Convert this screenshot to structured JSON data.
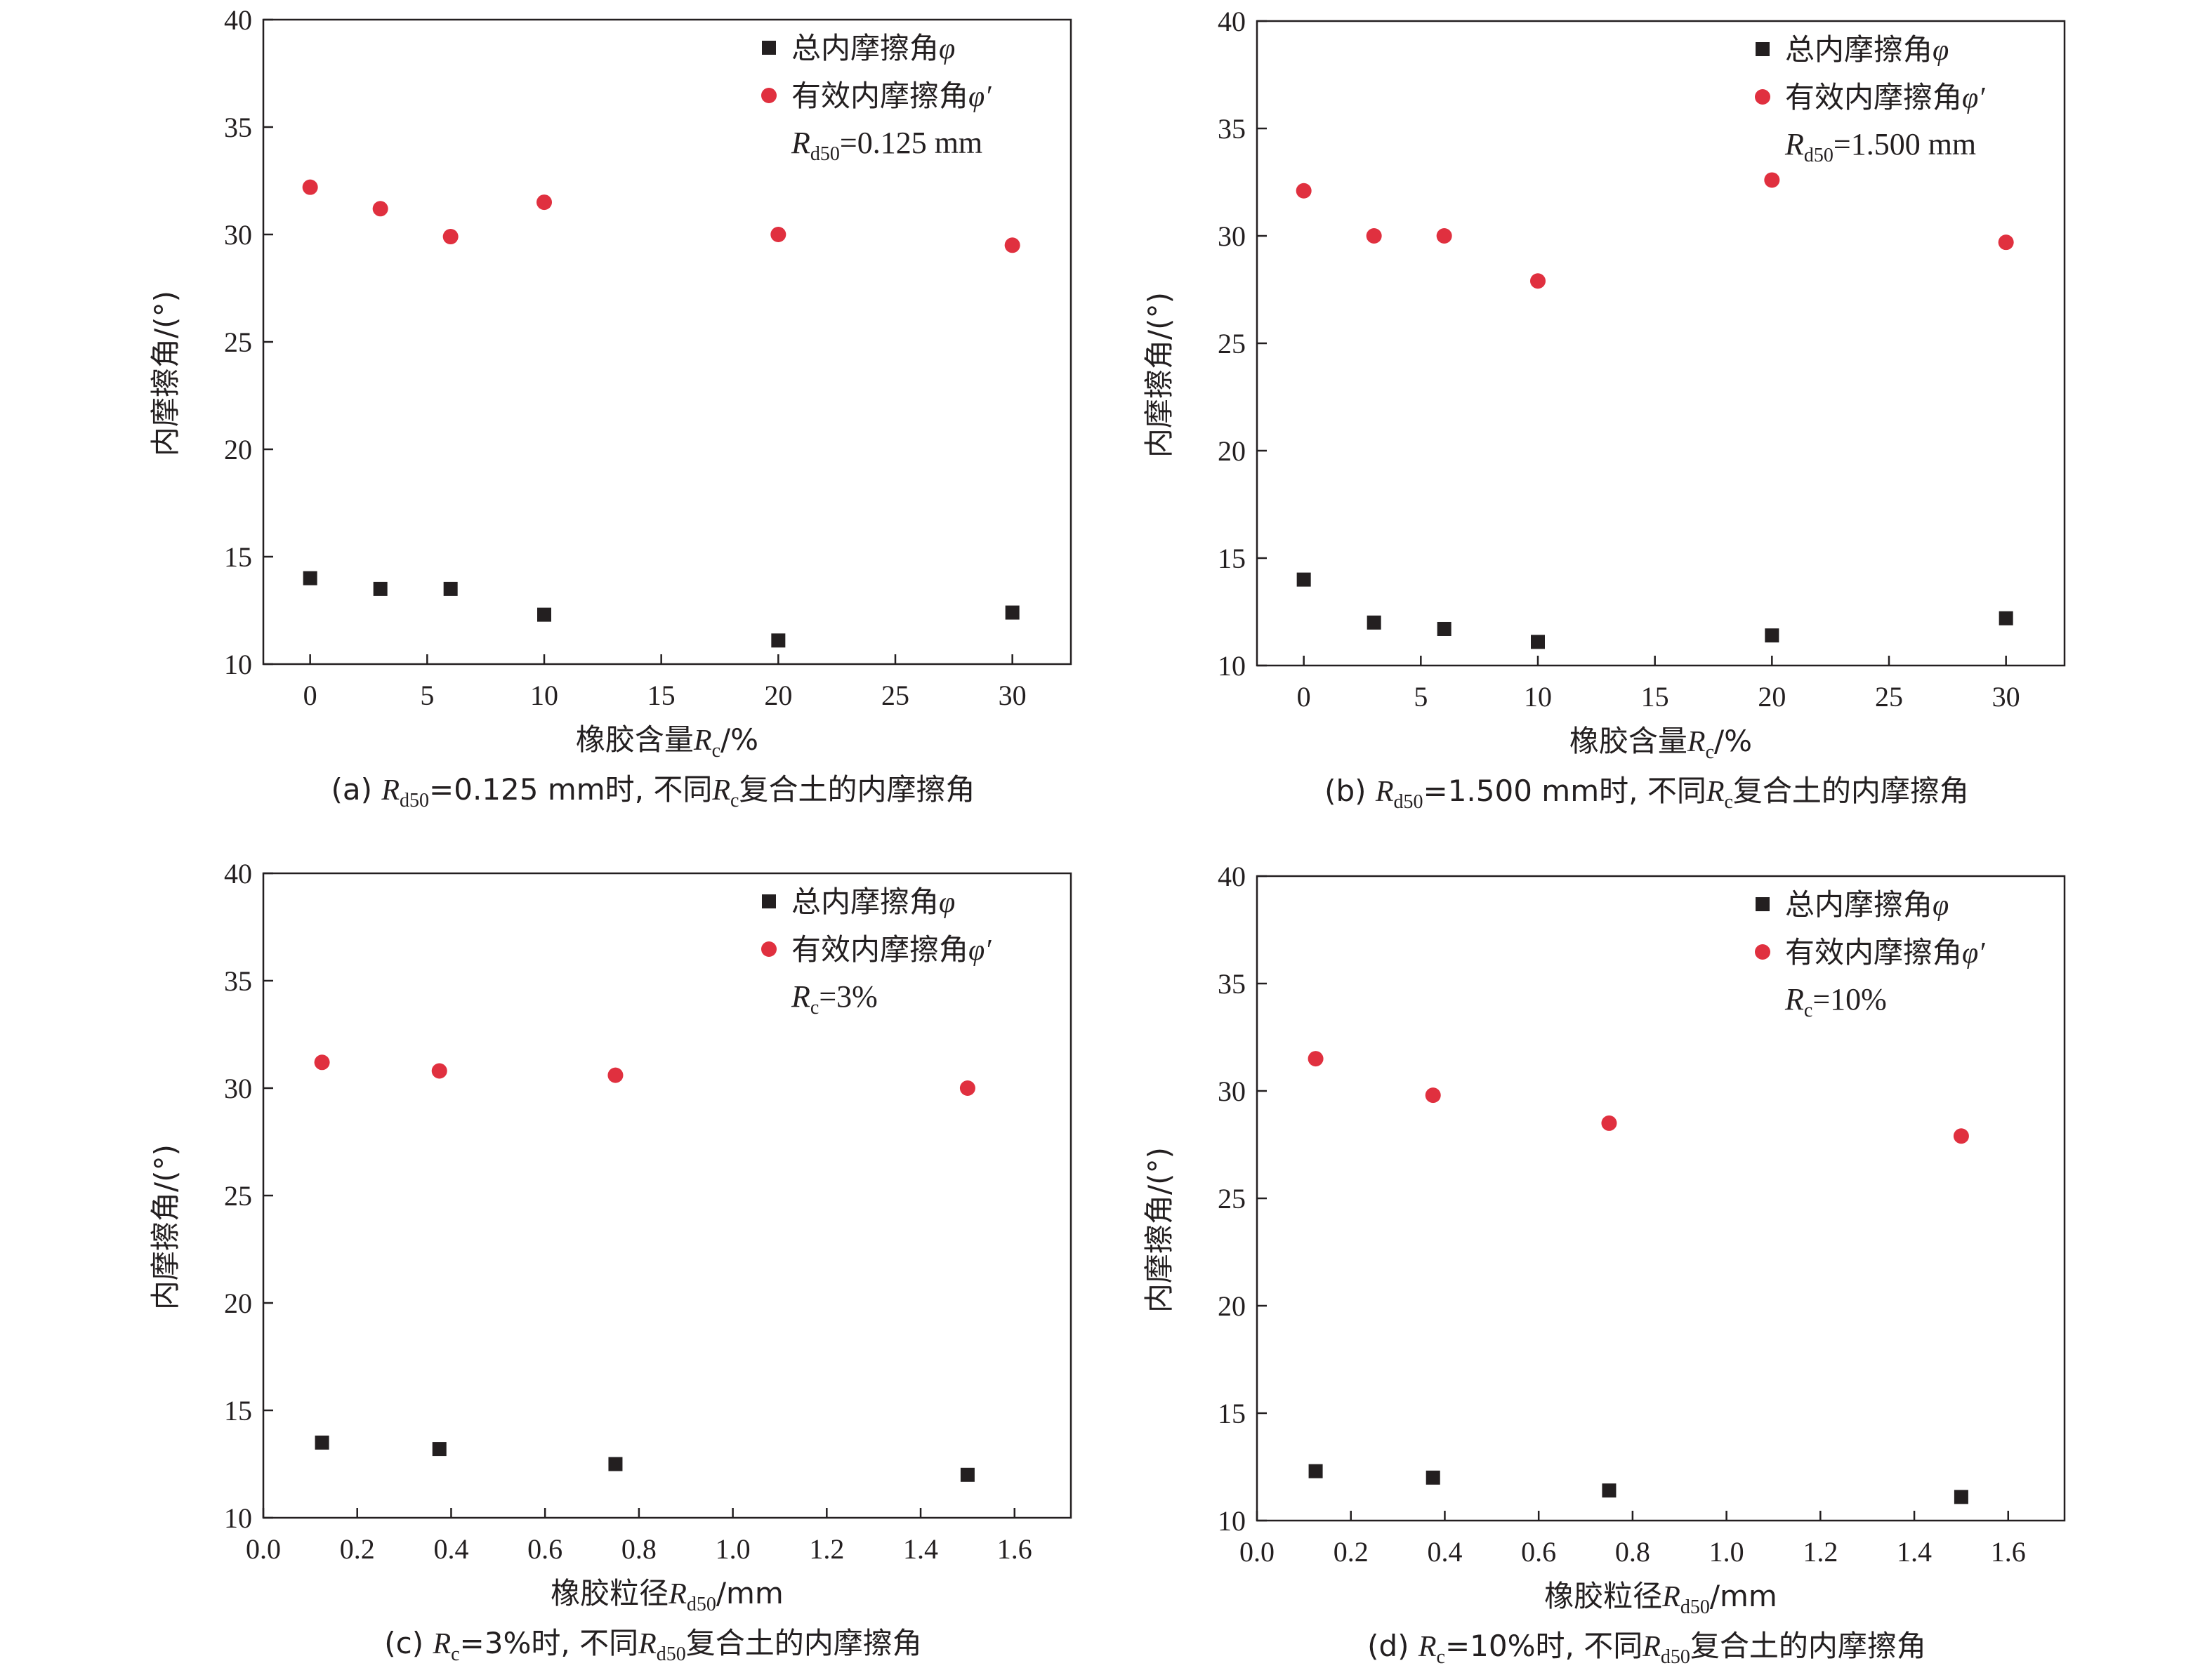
{
  "colors": {
    "total": "#231f20",
    "effective": "#e0303f",
    "axis": "#231f20"
  },
  "chart_data": [
    {
      "type": "scatter",
      "panel": "a",
      "caption": "(a) Rd50=0.125 mm时, 不同Rc复合土的内摩擦角",
      "xlabel": "橡胶含量Rc/%",
      "ylabel": "内摩擦角/(°)",
      "xlim": [
        -2,
        32.5
      ],
      "ylim": [
        10,
        40
      ],
      "xticks": [
        0,
        5,
        10,
        15,
        20,
        25,
        30
      ],
      "xtick_labels": [
        "0",
        "5",
        "10",
        "15",
        "20",
        "25",
        "30"
      ],
      "yticks": [
        10,
        15,
        20,
        25,
        30,
        35,
        40
      ],
      "ytick_labels": [
        "10",
        "15",
        "20",
        "25",
        "30",
        "35",
        "40"
      ],
      "legend_position": "top-right",
      "legend_param": "Rd50=0.125 mm",
      "series": [
        {
          "name": "总内摩擦角φ",
          "marker": "square",
          "x": [
            0,
            3,
            6,
            10,
            20,
            30
          ],
          "y": [
            14.0,
            13.5,
            13.5,
            12.3,
            11.1,
            12.4
          ]
        },
        {
          "name": "有效内摩擦角φ′",
          "marker": "circle",
          "x": [
            0,
            3,
            6,
            10,
            20,
            30
          ],
          "y": [
            32.2,
            31.2,
            29.9,
            31.5,
            30.0,
            29.5
          ]
        }
      ]
    },
    {
      "type": "scatter",
      "panel": "b",
      "caption": "(b) Rd50=1.500 mm时, 不同Rc复合土的内摩擦角",
      "xlabel": "橡胶含量Rc/%",
      "ylabel": "内摩擦角/(°)",
      "xlim": [
        -2,
        32.5
      ],
      "ylim": [
        10,
        40
      ],
      "xticks": [
        0,
        5,
        10,
        15,
        20,
        25,
        30
      ],
      "xtick_labels": [
        "0",
        "5",
        "10",
        "15",
        "20",
        "25",
        "30"
      ],
      "yticks": [
        10,
        15,
        20,
        25,
        30,
        35,
        40
      ],
      "ytick_labels": [
        "10",
        "15",
        "20",
        "25",
        "30",
        "35",
        "40"
      ],
      "legend_position": "top-right",
      "legend_param": "Rd50=1.500 mm",
      "series": [
        {
          "name": "总内摩擦角φ",
          "marker": "square",
          "x": [
            0,
            3,
            6,
            10,
            20,
            30
          ],
          "y": [
            14.0,
            12.0,
            11.7,
            11.1,
            11.4,
            12.2
          ]
        },
        {
          "name": "有效内摩擦角φ′",
          "marker": "circle",
          "x": [
            0,
            3,
            6,
            10,
            20,
            30
          ],
          "y": [
            32.1,
            30.0,
            30.0,
            27.9,
            32.6,
            29.7
          ]
        }
      ]
    },
    {
      "type": "scatter",
      "panel": "c",
      "caption": "(c) Rc=3%时, 不同Rd50复合土的内摩擦角",
      "xlabel": "橡胶粒径Rd50/mm",
      "ylabel": "内摩擦角/(°)",
      "xlim": [
        0,
        1.72
      ],
      "ylim": [
        10,
        40
      ],
      "xticks": [
        0,
        0.2,
        0.4,
        0.6,
        0.8,
        1.0,
        1.2,
        1.4,
        1.6
      ],
      "xtick_labels": [
        "0.0",
        "0.2",
        "0.4",
        "0.6",
        "0.8",
        "1.0",
        "1.2",
        "1.4",
        "1.6"
      ],
      "yticks": [
        10,
        15,
        20,
        25,
        30,
        35,
        40
      ],
      "ytick_labels": [
        "10",
        "15",
        "20",
        "25",
        "30",
        "35",
        "40"
      ],
      "legend_position": "top-right",
      "legend_param": "Rc=3%",
      "series": [
        {
          "name": "总内摩擦角φ",
          "marker": "square",
          "x": [
            0.125,
            0.375,
            0.75,
            1.5
          ],
          "y": [
            13.5,
            13.2,
            12.5,
            12.0
          ]
        },
        {
          "name": "有效内摩擦角φ′",
          "marker": "circle",
          "x": [
            0.125,
            0.375,
            0.75,
            1.5
          ],
          "y": [
            31.2,
            30.8,
            30.6,
            30.0
          ]
        }
      ]
    },
    {
      "type": "scatter",
      "panel": "d",
      "caption": "(d) Rc=10%时, 不同Rd50复合土的内摩擦角",
      "xlabel": "橡胶粒径Rd50/mm",
      "ylabel": "内摩擦角/(°)",
      "xlim": [
        0,
        1.72
      ],
      "ylim": [
        10,
        40
      ],
      "xticks": [
        0,
        0.2,
        0.4,
        0.6,
        0.8,
        1.0,
        1.2,
        1.4,
        1.6
      ],
      "xtick_labels": [
        "0.0",
        "0.2",
        "0.4",
        "0.6",
        "0.8",
        "1.0",
        "1.2",
        "1.4",
        "1.6"
      ],
      "yticks": [
        10,
        15,
        20,
        25,
        30,
        35,
        40
      ],
      "ytick_labels": [
        "10",
        "15",
        "20",
        "25",
        "30",
        "35",
        "40"
      ],
      "legend_position": "top-right",
      "legend_param": "Rc=10%",
      "series": [
        {
          "name": "总内摩擦角φ",
          "marker": "square",
          "x": [
            0.125,
            0.375,
            0.75,
            1.5
          ],
          "y": [
            12.3,
            12.0,
            11.4,
            11.1
          ]
        },
        {
          "name": "有效内摩擦角φ′",
          "marker": "circle",
          "x": [
            0.125,
            0.375,
            0.75,
            1.5
          ],
          "y": [
            31.5,
            29.8,
            28.5,
            27.9
          ]
        }
      ]
    }
  ]
}
